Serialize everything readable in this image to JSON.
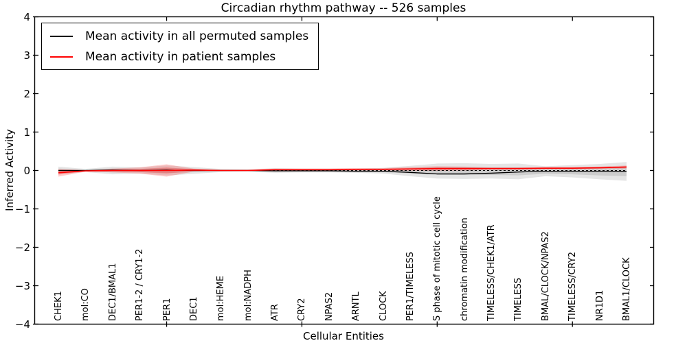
{
  "chart_data": {
    "type": "line",
    "title": "Circadian rhythm pathway -- 526 samples",
    "xlabel": "Cellular Entities",
    "ylabel": "Inferred Activity",
    "ylim": [
      -4,
      4
    ],
    "yticks": [
      4,
      3,
      2,
      1,
      0,
      -1,
      -2,
      -3,
      -4
    ],
    "x_major_tick_indices": [
      4,
      9,
      14,
      19
    ],
    "grid": false,
    "legend_position": "upper left",
    "background": "#ffffff",
    "categories": [
      "CHEK1",
      "mol:CO",
      "DEC1/BMAL1",
      "PER1-2 / CRY1-2",
      "PER1",
      "DEC1",
      "mol:HEME",
      "mol:NADPH",
      "ATR",
      "CRY2",
      "NPAS2",
      "ARNTL",
      "CLOCK",
      "PER1/TIMELESS",
      "S phase of mitotic cell cycle",
      "chromatin modification",
      "TIMELESS/CHEK1/ATR",
      "TIMELESS",
      "BMAL/CLOCK/NPAS2",
      "TIMELESS/CRY2",
      "NR1D1",
      "BMAL1/CLOCK"
    ],
    "series": [
      {
        "name": "Mean activity in all permuted samples",
        "color": "#000000",
        "line_style": "solid",
        "values": [
          0,
          0,
          0.01,
          0,
          0.01,
          0,
          0,
          0,
          -0.01,
          -0.01,
          -0.01,
          -0.02,
          -0.02,
          -0.05,
          -0.09,
          -0.09,
          -0.07,
          -0.04,
          -0.02,
          -0.02,
          -0.02,
          -0.03
        ]
      },
      {
        "name": "Mean activity in patient samples",
        "color": "#ff0000",
        "line_style": "solid",
        "values": [
          -0.06,
          -0.01,
          0,
          0,
          0,
          0.01,
          0,
          0,
          0.02,
          0.02,
          0.02,
          0.03,
          0.03,
          0.04,
          0.05,
          0.05,
          0.05,
          0.05,
          0.06,
          0.06,
          0.07,
          0.09
        ]
      },
      {
        "name": "zero-baseline",
        "color": "#000000",
        "line_style": "dashed",
        "values": [
          0,
          0,
          0,
          0,
          0,
          0,
          0,
          0,
          0,
          0,
          0,
          0,
          0,
          0,
          0,
          0,
          0,
          0,
          0,
          0,
          0,
          0
        ]
      }
    ],
    "bands": [
      {
        "name": "permuted-samples-range",
        "fill": "rgba(0,0,0,0.10)",
        "upper": [
          0.1,
          0.04,
          0.1,
          0.08,
          0.13,
          0.09,
          0.04,
          0.03,
          0.06,
          0.05,
          0.05,
          0.05,
          0.07,
          0.12,
          0.18,
          0.19,
          0.17,
          0.18,
          0.11,
          0.14,
          0.17,
          0.22
        ],
        "lower": [
          -0.1,
          -0.04,
          -0.1,
          -0.08,
          -0.13,
          -0.09,
          -0.04,
          -0.03,
          -0.06,
          -0.05,
          -0.05,
          -0.06,
          -0.08,
          -0.15,
          -0.21,
          -0.22,
          -0.21,
          -0.23,
          -0.15,
          -0.18,
          -0.23,
          -0.27
        ]
      },
      {
        "name": "patient-samples-range",
        "fill": "rgba(255,0,0,0.20)",
        "upper": [
          0.04,
          0.01,
          0.05,
          0.08,
          0.16,
          0.05,
          0.02,
          0.02,
          0.05,
          0.05,
          0.05,
          0.06,
          0.06,
          0.09,
          0.11,
          0.1,
          0.08,
          0.08,
          0.09,
          0.09,
          0.1,
          0.13
        ],
        "lower": [
          -0.16,
          -0.03,
          -0.05,
          -0.08,
          -0.16,
          -0.03,
          -0.02,
          -0.02,
          -0.01,
          -0.01,
          -0.01,
          0,
          0,
          -0.01,
          -0.01,
          0,
          0.02,
          0.02,
          0.03,
          0.03,
          0.04,
          0.05
        ]
      }
    ]
  }
}
